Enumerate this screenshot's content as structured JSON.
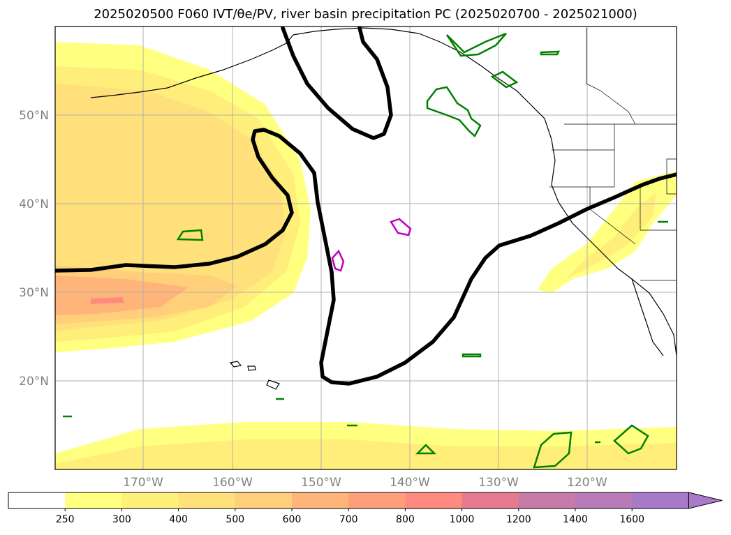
{
  "title": "2025020500 F060 IVT/θe/PV, river basin precipitation PC (2025020700 - 2025021000)",
  "map": {
    "lon_labels": [
      "170°W",
      "160°W",
      "150°W",
      "140°W",
      "130°W",
      "120°W"
    ],
    "lat_labels": [
      "50°N",
      "40°N",
      "30°N",
      "20°N"
    ],
    "gridline_lons": [
      -170,
      -160,
      -150,
      -140,
      -130,
      -120
    ],
    "gridline_lats": [
      50,
      40,
      30,
      20
    ],
    "extent": {
      "lon_min": -180,
      "lon_max": -110,
      "lat_min": 10,
      "lat_max": 60
    }
  },
  "colorbar": {
    "ticks": [
      "250",
      "300",
      "400",
      "500",
      "600",
      "700",
      "800",
      "1000",
      "1200",
      "1400",
      "1600"
    ],
    "colors": [
      "#ffffff",
      "#ffff80",
      "#fff07a",
      "#ffe07a",
      "#ffcf7a",
      "#ffb57a",
      "#ff9f7a",
      "#ff8a7f",
      "#e67a8f",
      "#c87aa8",
      "#b87ab8",
      "#a87ac8"
    ],
    "extend": "max"
  },
  "contour_colors": {
    "theta_pv": "#000000",
    "precip_green": "#008000",
    "precip_magenta": "#c000c0"
  }
}
